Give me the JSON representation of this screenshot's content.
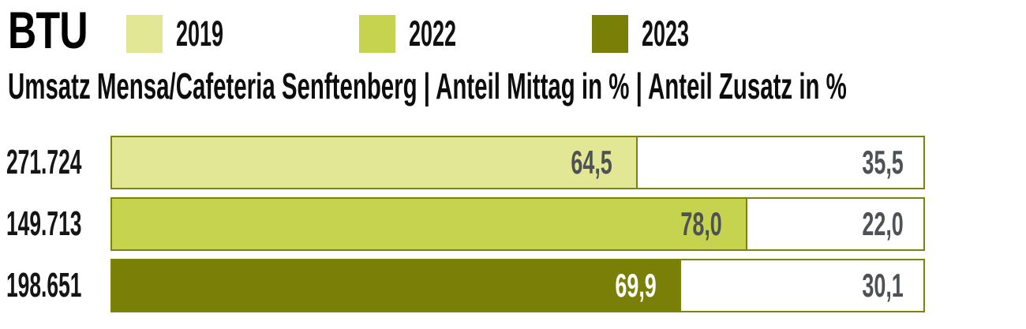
{
  "logo": {
    "text": "BTU"
  },
  "legend": {
    "items": [
      {
        "label": "2019",
        "color": "#e1e795"
      },
      {
        "label": "2022",
        "color": "#c5d34f"
      },
      {
        "label": "2023",
        "color": "#7a8007"
      }
    ]
  },
  "title": {
    "text": "Umsatz Mensa/Cafeteria Senftenberg | Anteil Mittag in % | Anteil Zusatz in %"
  },
  "chart_data": {
    "type": "bar",
    "orientation": "horizontal_stacked",
    "title": "Umsatz Mensa/Cafeteria Senftenberg | Anteil Mittag in % | Anteil Zusatz in %",
    "legend_entries": [
      "2019",
      "2022",
      "2023"
    ],
    "legend_position": "top",
    "categories": [
      "271.724",
      "149.713",
      "198.651"
    ],
    "series": [
      {
        "name": "Anteil Mittag in %",
        "values": [
          64.5,
          78.0,
          69.9
        ]
      },
      {
        "name": "Anteil Zusatz in %",
        "values": [
          35.5,
          22.0,
          30.1
        ]
      }
    ],
    "xlim": [
      0,
      100
    ],
    "grid": false,
    "rows": [
      {
        "year": "2019",
        "umsatz_label": "271.724",
        "mittag_pct": 64.5,
        "mittag_label": "64,5",
        "zusatz_pct": 35.5,
        "zusatz_label": "35,5",
        "fill_color": "#e1e795",
        "mittag_text_color": "#4e5256"
      },
      {
        "year": "2022",
        "umsatz_label": "149.713",
        "mittag_pct": 78.0,
        "mittag_label": "78,0",
        "zusatz_pct": 22.0,
        "zusatz_label": "22,0",
        "fill_color": "#c5d34f",
        "mittag_text_color": "#4e5256"
      },
      {
        "year": "2023",
        "umsatz_label": "198.651",
        "mittag_pct": 69.9,
        "mittag_label": "69,9",
        "zusatz_pct": 30.1,
        "zusatz_label": "30,1",
        "fill_color": "#7a8007",
        "mittag_text_color": "#ffffff"
      }
    ],
    "colors": {
      "border": "#7d840a",
      "value_text": "#4e5256",
      "zusatz_fill": "#ffffff"
    }
  }
}
